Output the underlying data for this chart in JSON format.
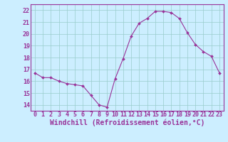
{
  "x": [
    0,
    1,
    2,
    3,
    4,
    5,
    6,
    7,
    8,
    9,
    10,
    11,
    12,
    13,
    14,
    15,
    16,
    17,
    18,
    19,
    20,
    21,
    22,
    23
  ],
  "y": [
    16.7,
    16.3,
    16.3,
    16.0,
    15.8,
    15.7,
    15.6,
    14.8,
    14.0,
    13.8,
    16.2,
    17.9,
    19.8,
    20.9,
    21.3,
    21.9,
    21.9,
    21.8,
    21.3,
    20.1,
    19.1,
    18.5,
    18.1,
    16.7
  ],
  "line_color": "#993399",
  "marker": "D",
  "marker_size": 2.0,
  "bg_color": "#cceeff",
  "grid_color": "#99cccc",
  "xlabel": "Windchill (Refroidissement éolien,°C)",
  "xlabel_color": "#993399",
  "tick_color": "#993399",
  "axis_color": "#993399",
  "ylim": [
    13.5,
    22.5
  ],
  "xlim": [
    -0.5,
    23.5
  ],
  "yticks": [
    14,
    15,
    16,
    17,
    18,
    19,
    20,
    21,
    22
  ],
  "xticks": [
    0,
    1,
    2,
    3,
    4,
    5,
    6,
    7,
    8,
    9,
    10,
    11,
    12,
    13,
    14,
    15,
    16,
    17,
    18,
    19,
    20,
    21,
    22,
    23
  ],
  "tick_fontsize": 6.0,
  "xlabel_fontsize": 7.0,
  "linewidth": 0.8
}
